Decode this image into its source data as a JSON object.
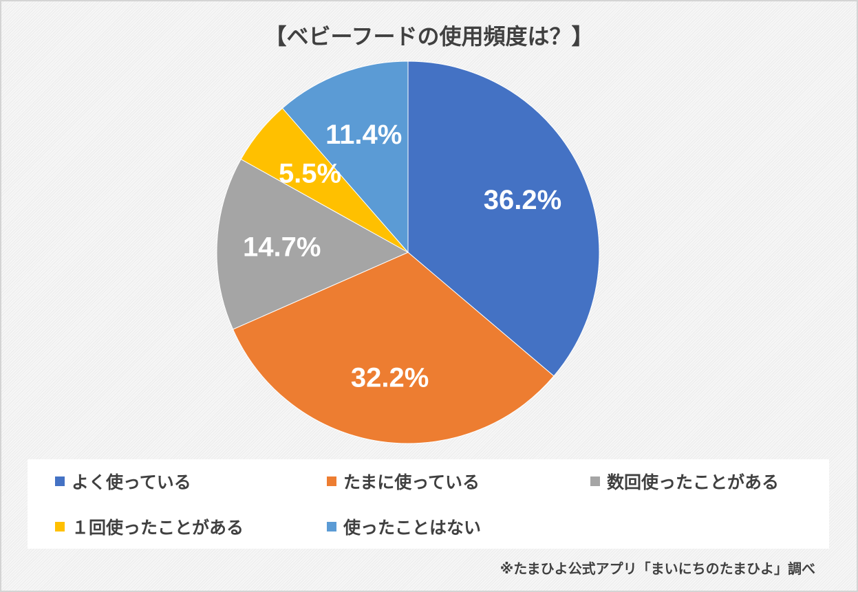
{
  "chart_data": {
    "type": "pie",
    "title": "【ベビーフードの使用頻度は？】",
    "start": "top-clockwise",
    "slices": [
      {
        "label": "よく使っている",
        "value": 36.2,
        "display": "36.2%",
        "color": "#4472c4"
      },
      {
        "label": "たまに使っている",
        "value": 32.2,
        "display": "32.2%",
        "color": "#ed7d31"
      },
      {
        "label": "数回使ったことがある",
        "value": 14.7,
        "display": "14.7%",
        "color": "#a5a5a5"
      },
      {
        "label": "１回使ったことがある",
        "value": 5.5,
        "display": "5.5%",
        "color": "#ffc000"
      },
      {
        "label": "使ったことはない",
        "value": 11.4,
        "display": "11.4%",
        "color": "#5b9bd5"
      }
    ],
    "legend_placement": "bottom"
  },
  "note": "※たまひよ公式アプリ「まいにちのたまひよ」調べ"
}
